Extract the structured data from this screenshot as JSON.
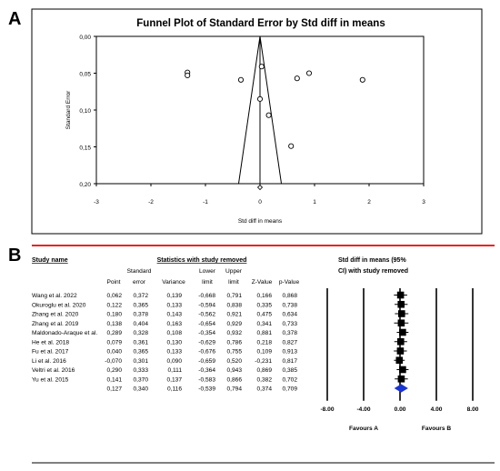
{
  "panel_a": {
    "label": "A",
    "chart_data": {
      "type": "scatter",
      "title": "Funnel Plot of Standard Error by Std diff in means",
      "xlabel": "Std diff in means",
      "ylabel": "Standard Error",
      "xlim": [
        -3,
        3
      ],
      "ylim": [
        0.0,
        0.2
      ],
      "y_inverted": true,
      "x_ticks": [
        "-3",
        "-2",
        "-1",
        "0",
        "1",
        "2",
        "3"
      ],
      "y_ticks": [
        "0,00",
        "0,05",
        "0,10",
        "0,15",
        "0,20"
      ],
      "funnel_center": 0.0,
      "points": [
        {
          "x": -1.33,
          "y": 0.049
        },
        {
          "x": -1.33,
          "y": 0.053
        },
        {
          "x": -0.35,
          "y": 0.059
        },
        {
          "x": 0.03,
          "y": 0.041
        },
        {
          "x": 0.0,
          "y": 0.085
        },
        {
          "x": 0.16,
          "y": 0.107
        },
        {
          "x": 0.57,
          "y": 0.149
        },
        {
          "x": 0.68,
          "y": 0.057
        },
        {
          "x": 0.9,
          "y": 0.05
        },
        {
          "x": 1.88,
          "y": 0.059
        }
      ],
      "combined_point": {
        "x": 0.0,
        "y": 0.205,
        "shape": "diamond"
      }
    }
  },
  "panel_b": {
    "label": "B",
    "accent_color": "#e8251f",
    "headers": {
      "study_name": "Study name",
      "stats_group": "Statistics with study removed",
      "point": "Point",
      "se_line1": "Standard",
      "se_line2": "error",
      "variance": "Variance",
      "lower_line1": "Lower",
      "lower_line2": "limit",
      "upper_line1": "Upper",
      "upper_line2": "limit",
      "z": "Z-Value",
      "p": "p-Value",
      "forest_line1": "Std diff in means (95%",
      "forest_line2": "CI) with study removed"
    },
    "rows": [
      {
        "study": "Wang et al. 2022",
        "point": "0,062",
        "se": "0,372",
        "variance": "0,139",
        "lower": "-0,668",
        "upper": "0,791",
        "z": "0,166",
        "p": "0,868"
      },
      {
        "study": "Okuroglu et al. 2020",
        "point": "0,122",
        "se": "0,365",
        "variance": "0,133",
        "lower": "-0,594",
        "upper": "0,838",
        "z": "0,335",
        "p": "0,738"
      },
      {
        "study": "Zhang et al. 2020",
        "point": "0,180",
        "se": "0,378",
        "variance": "0,143",
        "lower": "-0,562",
        "upper": "0,921",
        "z": "0,475",
        "p": "0,634"
      },
      {
        "study": "Zhang et al. 2019",
        "point": "0,138",
        "se": "0,404",
        "variance": "0,163",
        "lower": "-0,654",
        "upper": "0,929",
        "z": "0,341",
        "p": "0,733"
      },
      {
        "study": "Maldonado-Araque et al.",
        "point": "0,289",
        "se": "0,328",
        "variance": "0,108",
        "lower": "-0,354",
        "upper": "0,932",
        "z": "0,881",
        "p": "0,378"
      },
      {
        "study": "He et al. 2018",
        "point": "0,079",
        "se": "0,361",
        "variance": "0,130",
        "lower": "-0,629",
        "upper": "0,786",
        "z": "0,218",
        "p": "0,827"
      },
      {
        "study": "Fu et al. 2017",
        "point": "0,040",
        "se": "0,365",
        "variance": "0,133",
        "lower": "-0,676",
        "upper": "0,755",
        "z": "0,109",
        "p": "0,913"
      },
      {
        "study": "Li et al. 2016",
        "point": "-0,070",
        "se": "0,301",
        "variance": "0,090",
        "lower": "-0,659",
        "upper": "0,520",
        "z": "-0,231",
        "p": "0,817"
      },
      {
        "study": "Veltri et al. 2016",
        "point": "0,290",
        "se": "0,333",
        "variance": "0,111",
        "lower": "-0,364",
        "upper": "0,943",
        "z": "0,869",
        "p": "0,385"
      },
      {
        "study": "Yu et al. 2015",
        "point": "0,141",
        "se": "0,370",
        "variance": "0,137",
        "lower": "-0,583",
        "upper": "0,866",
        "z": "0,382",
        "p": "0,702"
      }
    ],
    "summary": {
      "study": "",
      "point": "0,127",
      "se": "0,340",
      "variance": "0,116",
      "lower": "-0,539",
      "upper": "0,794",
      "z": "0,374",
      "p": "0,709"
    },
    "forest_data": {
      "type": "forest",
      "xlim": [
        -8,
        8
      ],
      "x_ticks": [
        "-8.00",
        "-4.00",
        "0.00",
        "4.00",
        "8.00"
      ],
      "favours_left": "Favours A",
      "favours_right": "Favours B",
      "square_color": "#000000",
      "diamond_color": "#1a35d6"
    }
  }
}
